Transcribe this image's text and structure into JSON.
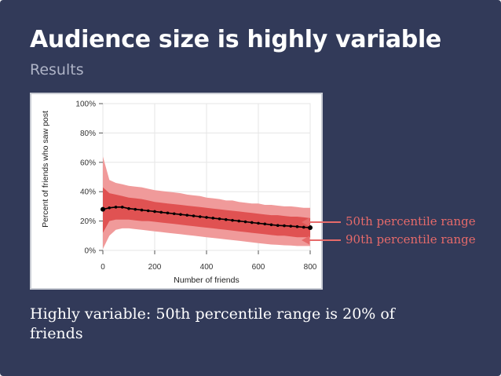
{
  "slide": {
    "title": "Audience size is highly variable",
    "subtitle": "Results",
    "caption": "Highly variable: 50th percentile range is 20% of friends"
  },
  "annotations": {
    "p50": "50th percentile range",
    "p90": "90th percentile range"
  },
  "colors": {
    "background": "#323a59",
    "band90": "#f09a9a",
    "band50": "#e05252",
    "line": "#000000",
    "annotation": "#e66a6a"
  },
  "chart_data": {
    "type": "area",
    "xlabel": "Number of friends",
    "ylabel": "Percent of friends who saw post",
    "xlim": [
      0,
      800
    ],
    "ylim": [
      0,
      100
    ],
    "x_ticks": [
      0,
      200,
      400,
      600,
      800
    ],
    "y_ticks": [
      0,
      20,
      40,
      60,
      80,
      100
    ],
    "y_tick_labels": [
      "0%",
      "20%",
      "40%",
      "60%",
      "80%",
      "100%"
    ],
    "grid": true,
    "x": [
      0,
      25,
      50,
      75,
      100,
      125,
      150,
      175,
      200,
      225,
      250,
      275,
      300,
      325,
      350,
      375,
      400,
      425,
      450,
      475,
      500,
      525,
      550,
      575,
      600,
      625,
      650,
      675,
      700,
      725,
      750,
      775,
      800
    ],
    "series": [
      {
        "name": "90th percentile range",
        "lower": [
          1,
          10,
          14,
          15,
          15,
          14.5,
          14,
          13.5,
          13,
          12.5,
          12,
          11.5,
          11,
          10.5,
          10,
          9.5,
          9,
          8.5,
          8,
          7.5,
          7,
          6.5,
          6,
          5.5,
          5,
          4.5,
          4,
          3.8,
          3.5,
          3.3,
          3,
          3,
          3
        ],
        "upper": [
          64,
          48,
          46,
          45,
          44,
          43.5,
          43,
          42,
          41,
          40.5,
          40,
          39.5,
          39,
          38,
          37.5,
          37,
          36,
          35.5,
          35,
          34,
          34,
          33,
          32.5,
          32,
          32,
          31,
          31,
          30.5,
          30,
          30,
          29.5,
          29,
          29
        ]
      },
      {
        "name": "50th percentile range",
        "lower": [
          12,
          20,
          21,
          21,
          21,
          20.5,
          20,
          20,
          19.5,
          19,
          18.5,
          18,
          17.5,
          17,
          16.5,
          16,
          15.5,
          15,
          14.5,
          14,
          13.5,
          13,
          12.5,
          12,
          11.5,
          11,
          10.5,
          10,
          10,
          9.5,
          9,
          9,
          9
        ],
        "upper": [
          43,
          39,
          38,
          37,
          36,
          35.5,
          35,
          34,
          33,
          32.5,
          32,
          31.5,
          31,
          30.5,
          30,
          29.5,
          29,
          28.5,
          28,
          27.5,
          27,
          26.5,
          26,
          25.5,
          25,
          24.5,
          24,
          24,
          23.5,
          23,
          23,
          22.5,
          22
        ]
      },
      {
        "name": "median",
        "values": [
          28,
          29,
          29.5,
          29.5,
          28.5,
          28,
          27.5,
          27,
          26.5,
          26,
          25.5,
          25,
          24.5,
          24,
          23.5,
          23,
          22.5,
          22,
          21.5,
          21,
          20.5,
          20,
          19.5,
          19,
          18.5,
          18,
          17.5,
          17,
          16.8,
          16.5,
          16.2,
          15.8,
          15.5
        ]
      }
    ]
  }
}
